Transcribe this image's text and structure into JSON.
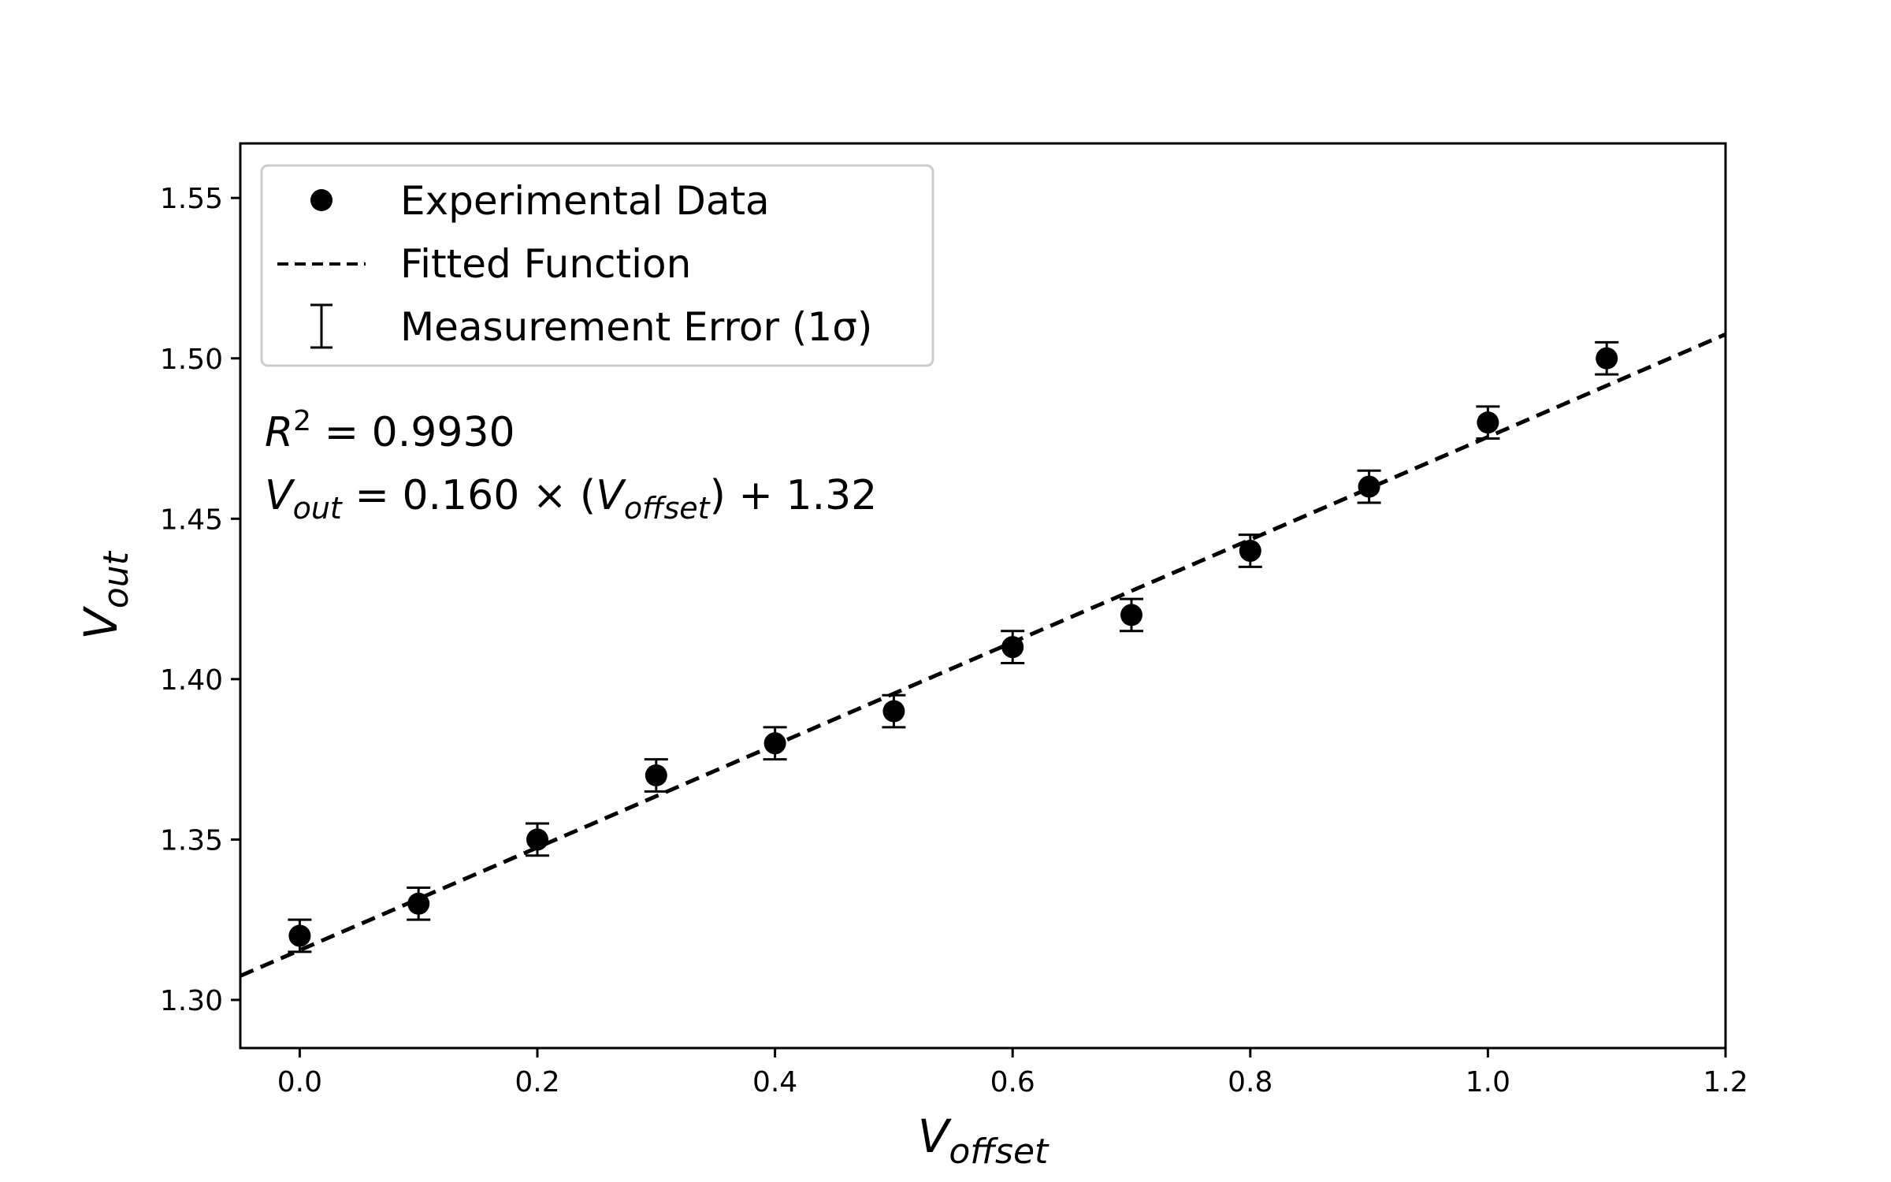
{
  "chart_data": {
    "type": "scatter",
    "x_values": [
      0.0,
      0.1,
      0.2,
      0.3,
      0.4,
      0.5,
      0.6,
      0.7,
      0.8,
      0.9,
      1.0,
      1.1
    ],
    "y_values": [
      1.32,
      1.33,
      1.35,
      1.37,
      1.38,
      1.39,
      1.41,
      1.42,
      1.44,
      1.46,
      1.48,
      1.5
    ],
    "y_error": 0.005,
    "fit": {
      "slope": 0.16,
      "intercept": 1.3155
    },
    "xlim": [
      -0.05,
      1.2
    ],
    "ylim": [
      1.285,
      1.567
    ],
    "x_ticks": [
      "0.0",
      "0.2",
      "0.4",
      "0.6",
      "0.8",
      "1.0",
      "1.2"
    ],
    "y_ticks": [
      "1.30",
      "1.35",
      "1.40",
      "1.45",
      "1.50",
      "1.55"
    ],
    "xlabel": {
      "main": "V",
      "sub": "offset"
    },
    "ylabel": {
      "main": "V",
      "sub": "out"
    },
    "legend": {
      "placement": "top-left",
      "entries": [
        "Experimental Data",
        "Fitted Function",
        "Measurement Error (1σ)"
      ]
    },
    "annotations": {
      "r2": {
        "base": "R",
        "sup": "2",
        "text": " = 0.9930"
      },
      "equation": {
        "lhs": "V",
        "lhs_sub": "out",
        "mid": " = 0.160 × (",
        "var": "V",
        "var_sub": "offset",
        "rhs": ") + 1.32"
      }
    },
    "colors": {
      "markers": "#000000",
      "fit_line": "#000000"
    }
  }
}
